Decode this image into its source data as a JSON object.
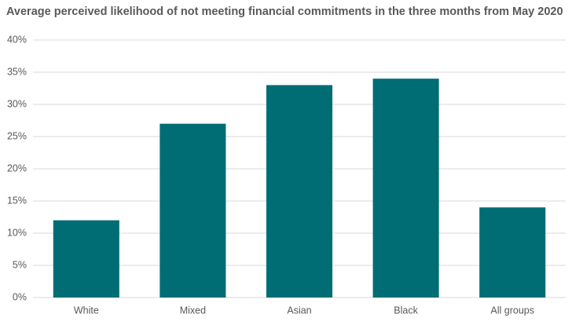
{
  "chart_data": {
    "type": "bar",
    "title": "Average perceived likelihood of not meeting financial commitments in the three months from May 2020",
    "categories": [
      "White",
      "Mixed",
      "Asian",
      "Black",
      "All groups"
    ],
    "values": [
      12,
      27,
      33,
      34,
      14
    ],
    "color": "#006d75",
    "ylim": [
      0,
      40
    ],
    "yticks": [
      {
        "value": 0,
        "label": "0%"
      },
      {
        "value": 5,
        "label": "5%"
      },
      {
        "value": 10,
        "label": "10%"
      },
      {
        "value": 15,
        "label": "15%"
      },
      {
        "value": 20,
        "label": "20%"
      },
      {
        "value": 25,
        "label": "25%"
      },
      {
        "value": 30,
        "label": "30%"
      },
      {
        "value": 35,
        "label": "35%"
      },
      {
        "value": 40,
        "label": "40%"
      }
    ],
    "grid": true
  }
}
